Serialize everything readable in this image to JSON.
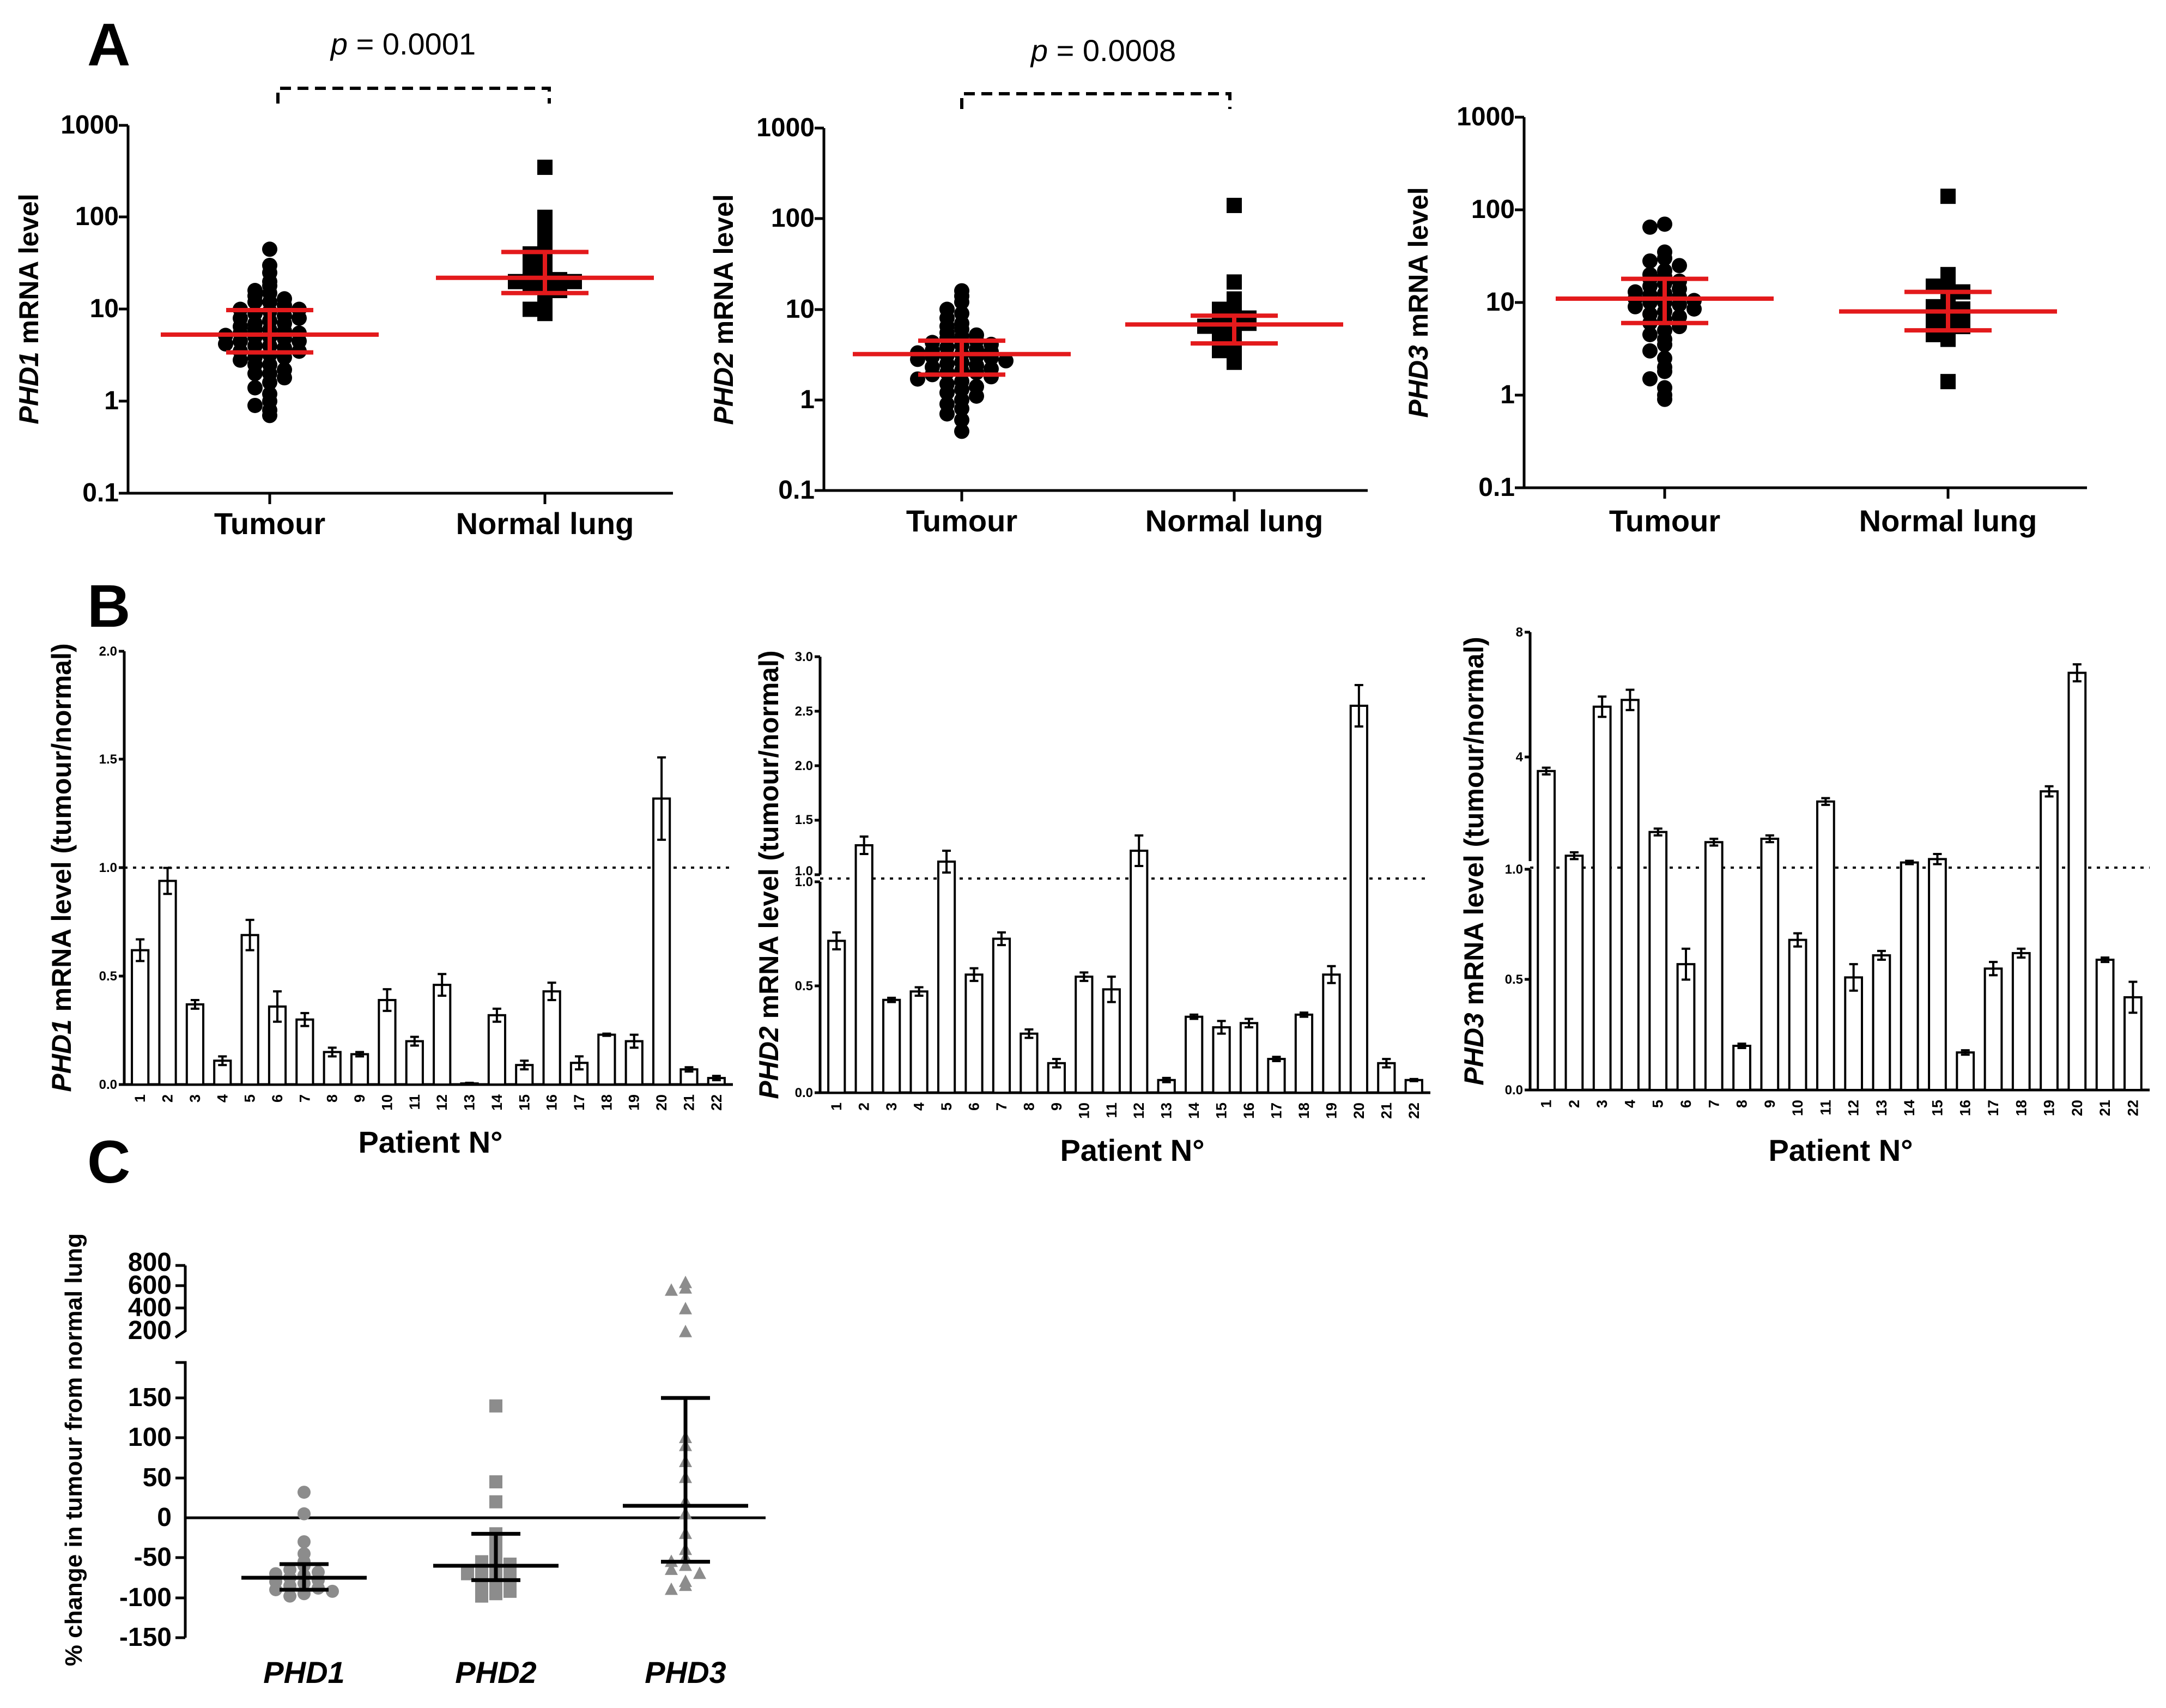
{
  "panel_labels": [
    "A",
    "B",
    "C"
  ],
  "chart_data": [
    {
      "id": "A1",
      "type": "scatter",
      "yscale": "log",
      "ylabel_gene": "PHD1",
      "ylabel_rest": " mRNA level",
      "ytick_labels": [
        "0.1",
        "1",
        "10",
        "100",
        "1000"
      ],
      "ylim": [
        0.1,
        1000
      ],
      "categories": [
        "Tumour",
        "Normal lung"
      ],
      "pvalue_label": "p",
      "pvalue_text": " = 0.0001",
      "groups": [
        {
          "name": "Tumour",
          "marker": "circle",
          "values": [
            45,
            30,
            25,
            20,
            18,
            16,
            15,
            14,
            13,
            12,
            12,
            11,
            10,
            10,
            9.5,
            9,
            8.5,
            8,
            8,
            7.5,
            7,
            7,
            6.5,
            6,
            6,
            5.8,
            5.5,
            5.5,
            5.2,
            5,
            5,
            4.8,
            4.5,
            4.5,
            4.2,
            4,
            4,
            3.8,
            3.5,
            3.5,
            3.2,
            3,
            3,
            2.8,
            2.5,
            2.5,
            2.2,
            2,
            2,
            1.8,
            1.6,
            1.4,
            1.2,
            1,
            0.9,
            0.8,
            0.7
          ],
          "median": 5.3,
          "q1": 3.4,
          "q3": 9.8
        },
        {
          "name": "Normal lung",
          "marker": "square",
          "values": [
            350,
            100,
            80,
            60,
            50,
            45,
            40,
            35,
            30,
            28,
            25,
            23,
            22,
            21,
            20,
            20,
            19,
            18,
            16,
            14,
            12,
            10,
            9
          ],
          "median": 22,
          "q1": 15,
          "q3": 42
        }
      ]
    },
    {
      "id": "A2",
      "type": "scatter",
      "yscale": "log",
      "ylabel_gene": "PHD2",
      "ylabel_rest": " mRNA level",
      "ytick_labels": [
        "0.1",
        "1",
        "10",
        "100",
        "1000"
      ],
      "ylim": [
        0.1,
        1000
      ],
      "categories": [
        "Tumour",
        "Normal lung"
      ],
      "pvalue_label": "p",
      "pvalue_text": " = 0.0008",
      "groups": [
        {
          "name": "Tumour",
          "marker": "circle",
          "values": [
            16,
            14,
            12,
            10,
            9,
            8,
            7,
            6.5,
            6,
            5.5,
            5.2,
            5,
            4.8,
            4.5,
            4.3,
            4.1,
            4,
            3.8,
            3.6,
            3.5,
            3.4,
            3.3,
            3.2,
            3.1,
            3,
            3,
            2.9,
            2.8,
            2.7,
            2.6,
            2.5,
            2.4,
            2.3,
            2.2,
            2.1,
            2,
            2,
            1.9,
            1.8,
            1.7,
            1.6,
            1.5,
            1.4,
            1.3,
            1.2,
            1.1,
            1,
            0.9,
            0.8,
            0.7,
            0.6,
            0.45
          ],
          "median": 3.2,
          "q1": 1.9,
          "q3": 4.5
        },
        {
          "name": "Normal lung",
          "marker": "square",
          "values": [
            140,
            20,
            13,
            11,
            10,
            9,
            8.5,
            8,
            7.5,
            7,
            7,
            6.5,
            6,
            5.5,
            5,
            4.5,
            4,
            3.5,
            3,
            2.6
          ],
          "median": 6.8,
          "q1": 4.2,
          "q3": 8.5
        }
      ]
    },
    {
      "id": "A3",
      "type": "scatter",
      "yscale": "log",
      "ylabel_gene": "PHD3",
      "ylabel_rest": " mRNA level",
      "ytick_labels": [
        "0.1",
        "1",
        "10",
        "100",
        "1000"
      ],
      "ylim": [
        0.1,
        1000
      ],
      "categories": [
        "Tumour",
        "Normal lung"
      ],
      "groups": [
        {
          "name": "Tumour",
          "marker": "circle",
          "values": [
            70,
            65,
            35,
            30,
            28,
            25,
            22,
            20,
            19,
            18,
            17,
            16,
            15,
            14,
            13,
            12.5,
            12,
            11.5,
            11,
            10.5,
            10,
            10,
            9.5,
            9,
            8.5,
            8,
            7.5,
            7,
            6.5,
            6,
            5.5,
            5,
            4.5,
            4,
            3.5,
            3,
            2.5,
            2,
            1.8,
            1.5,
            1.2,
            1,
            0.9
          ],
          "median": 11,
          "q1": 6,
          "q3": 18
        },
        {
          "name": "Normal lung",
          "marker": "square",
          "values": [
            140,
            20,
            18,
            16,
            15,
            13,
            11,
            10,
            9,
            8.5,
            8,
            7.5,
            7,
            6.5,
            6,
            5.5,
            5,
            4.5,
            4,
            1.4
          ],
          "median": 8,
          "q1": 5,
          "q3": 13
        }
      ]
    },
    {
      "id": "B1",
      "type": "bar",
      "ylabel_gene": "PHD1",
      "ylabel_rest": " mRNA level (tumour/normal)",
      "xlabel": "Patient N°",
      "categories": [
        "1",
        "2",
        "3",
        "4",
        "5",
        "6",
        "7",
        "8",
        "9",
        "10",
        "11",
        "12",
        "13",
        "14",
        "15",
        "16",
        "17",
        "18",
        "19",
        "20",
        "21",
        "22"
      ],
      "values": [
        0.62,
        0.94,
        0.37,
        0.11,
        0.69,
        0.36,
        0.3,
        0.15,
        0.14,
        0.39,
        0.2,
        0.46,
        0.005,
        0.32,
        0.09,
        0.43,
        0.1,
        0.23,
        0.2,
        1.32,
        0.07,
        0.03
      ],
      "errors": [
        0.05,
        0.06,
        0.02,
        0.02,
        0.07,
        0.07,
        0.03,
        0.02,
        0.01,
        0.05,
        0.02,
        0.05,
        0.003,
        0.03,
        0.02,
        0.04,
        0.03,
        0.005,
        0.03,
        0.19,
        0.01,
        0.01
      ],
      "ytick_labels": [
        "0.0",
        "0.5",
        "1.0",
        "1.5",
        "2.0"
      ],
      "ylim": [
        0,
        2.0
      ],
      "reference_line": 1.0
    },
    {
      "id": "B2",
      "type": "bar",
      "broken_axis": true,
      "ylabel_gene": "PHD2",
      "ylabel_rest": " mRNA level (tumour/normal)",
      "xlabel": "Patient N°",
      "categories": [
        "1",
        "2",
        "3",
        "4",
        "5",
        "6",
        "7",
        "8",
        "9",
        "10",
        "11",
        "12",
        "13",
        "14",
        "15",
        "16",
        "17",
        "18",
        "19",
        "20",
        "21",
        "22"
      ],
      "values": [
        0.72,
        1.27,
        0.44,
        0.48,
        1.12,
        0.56,
        0.73,
        0.28,
        0.14,
        0.55,
        0.49,
        1.22,
        0.06,
        0.36,
        0.31,
        0.33,
        0.16,
        0.37,
        0.56,
        2.55,
        0.14,
        0.06
      ],
      "errors": [
        0.04,
        0.08,
        0.01,
        0.02,
        0.1,
        0.03,
        0.03,
        0.02,
        0.02,
        0.02,
        0.06,
        0.14,
        0.01,
        0.01,
        0.03,
        0.02,
        0.01,
        0.01,
        0.04,
        0.19,
        0.02,
        0.005
      ],
      "lower_ticks": [
        "0.0",
        "0.5",
        "1.0"
      ],
      "upper_ticks": [
        "1.0",
        "1.5",
        "2.0",
        "2.5",
        "3.0"
      ],
      "lower_range": [
        0,
        1.0
      ],
      "upper_range": [
        1.0,
        3.0
      ],
      "reference_line": 1.0
    },
    {
      "id": "B3",
      "type": "bar",
      "broken_axis": true,
      "ylabel_gene": "PHD3",
      "ylabel_rest": " mRNA level (tumour/normal)",
      "xlabel": "Patient N°",
      "categories": [
        "1",
        "2",
        "3",
        "4",
        "5",
        "6",
        "7",
        "8",
        "9",
        "10",
        "11",
        "12",
        "13",
        "14",
        "15",
        "16",
        "17",
        "18",
        "19",
        "20",
        "21",
        "22"
      ],
      "values": [
        3.9,
        1.4,
        5.8,
        6.0,
        2.1,
        0.57,
        1.8,
        0.2,
        1.9,
        0.68,
        3.0,
        0.51,
        0.61,
        1.2,
        1.3,
        0.17,
        0.55,
        0.62,
        3.3,
        6.8,
        0.59,
        0.42
      ],
      "errors": [
        0.1,
        0.1,
        0.3,
        0.3,
        0.1,
        0.07,
        0.1,
        0.01,
        0.1,
        0.03,
        0.1,
        0.06,
        0.02,
        0.05,
        0.15,
        0.01,
        0.03,
        0.02,
        0.15,
        0.25,
        0.01,
        0.07
      ],
      "lower_ticks": [
        "0.0",
        "0.5",
        "1.0"
      ],
      "upper_ticks": [
        "4",
        "8"
      ],
      "lower_range": [
        0,
        1.0
      ],
      "upper_range": [
        1.0,
        8.0
      ],
      "reference_line": 1.0
    },
    {
      "id": "C",
      "type": "scatter",
      "broken_axis": true,
      "ylabel": "% change in tumour from normal lung",
      "ytick_labels_lower": [
        "-150",
        "-100",
        "-50",
        "0",
        "50",
        "100",
        "150"
      ],
      "ytick_labels_upper": [
        "200",
        "400",
        "600",
        "800"
      ],
      "categories": [
        "PHD1",
        "PHD2",
        "PHD3"
      ],
      "groups": [
        {
          "name": "PHD1",
          "marker": "circle",
          "values": [
            32,
            5,
            -30,
            -45,
            -55,
            -60,
            -65,
            -68,
            -70,
            -72,
            -75,
            -78,
            -80,
            -82,
            -85,
            -88,
            -90,
            -92,
            -95,
            -98
          ],
          "median": -75,
          "q1": -90,
          "q3": -58
        },
        {
          "name": "PHD2",
          "marker": "square",
          "values": [
            140,
            45,
            20,
            -20,
            -30,
            -40,
            -50,
            -55,
            -58,
            -60,
            -62,
            -65,
            -70,
            -72,
            -75,
            -80,
            -85,
            -88,
            -92,
            -95,
            -98
          ],
          "median": -60,
          "q1": -78,
          "q3": -20
        },
        {
          "name": "PHD3",
          "marker": "triangle",
          "values": [
            640,
            590,
            570,
            400,
            190,
            100,
            90,
            70,
            50,
            20,
            5,
            -20,
            -40,
            -50,
            -55,
            -60,
            -65,
            -70,
            -80,
            -85,
            -90
          ],
          "median": 15,
          "q1": -55,
          "q3": 150
        }
      ]
    }
  ]
}
